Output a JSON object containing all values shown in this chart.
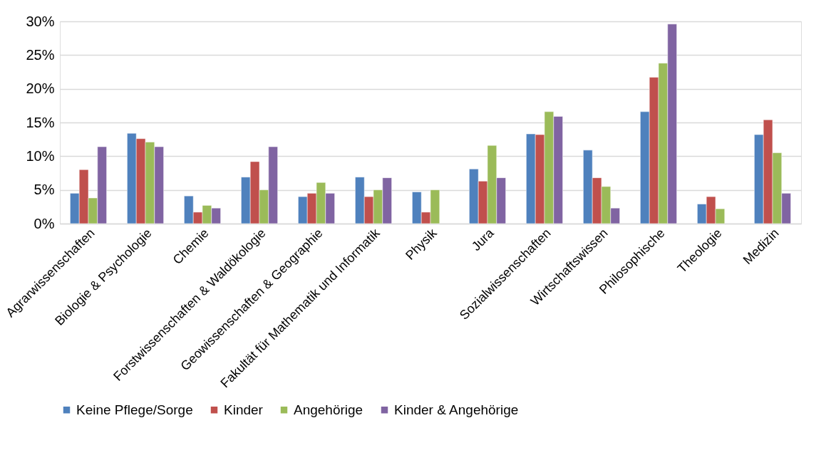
{
  "chart_data": {
    "type": "bar",
    "categories": [
      "Agrarwissenschaften",
      "Biologie & Psychologie",
      "Chemie",
      "Forstwissenschaften & Waldökologie",
      "Geowissenschaften & Geographie",
      "Fakultät für Mathematik und Informatik",
      "Physik",
      "Jura",
      "Sozialwissenschaften",
      "Wirtschaftswissen",
      "Philosophische",
      "Theologie",
      "Medizin"
    ],
    "series": [
      {
        "name": "Keine Pflege/Sorge",
        "color": "#4f81bd",
        "values": [
          4.5,
          13.4,
          4.1,
          6.9,
          4.0,
          6.9,
          4.7,
          8.1,
          13.3,
          10.9,
          16.6,
          2.9,
          13.2
        ]
      },
      {
        "name": "Kinder",
        "color": "#c0504d",
        "values": [
          8.0,
          12.6,
          1.7,
          9.2,
          4.5,
          4.0,
          1.7,
          6.3,
          13.2,
          6.8,
          21.7,
          4.0,
          15.4
        ]
      },
      {
        "name": "Angehörige",
        "color": "#9bbb59",
        "values": [
          3.8,
          12.1,
          2.7,
          5.0,
          6.1,
          5.0,
          5.0,
          11.6,
          16.6,
          5.5,
          23.8,
          2.2,
          10.5
        ]
      },
      {
        "name": "Kinder & Angehörige",
        "color": "#8064a2",
        "values": [
          11.4,
          11.4,
          2.3,
          11.4,
          4.5,
          6.8,
          null,
          6.8,
          15.9,
          2.3,
          29.6,
          null,
          4.5
        ]
      }
    ],
    "ylim": [
      0,
      30
    ],
    "yticks": [
      {
        "value": 0,
        "label": "0%"
      },
      {
        "value": 5,
        "label": "5%"
      },
      {
        "value": 10,
        "label": "10%"
      },
      {
        "value": 15,
        "label": "15%"
      },
      {
        "value": 20,
        "label": "20%"
      },
      {
        "value": 25,
        "label": "25%"
      },
      {
        "value": 30,
        "label": "30%"
      }
    ],
    "grid": "y",
    "legend": "bottom"
  }
}
